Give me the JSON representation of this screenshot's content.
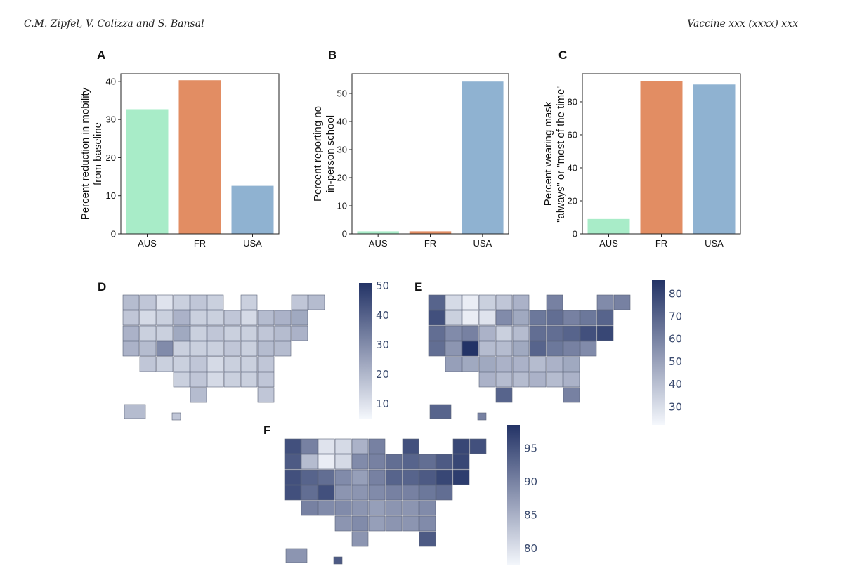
{
  "header": {
    "authors": "C.M. Zipfel, V. Colizza and S. Bansal",
    "journal": "Vaccine xxx (xxxx) xxx"
  },
  "colors": {
    "AUS": "#a8ecc8",
    "FR": "#e28d63",
    "USA": "#8fb2d1",
    "map_low": "#f4f7fc",
    "map_high": "#233366",
    "map_border": "#5a6378",
    "tick_text": "#3a4a6e"
  },
  "chart_data": [
    {
      "panel": "A",
      "type": "bar",
      "categories": [
        "AUS",
        "FR",
        "USA"
      ],
      "values": [
        32.7,
        40.3,
        12.6
      ],
      "ylabel_lines": [
        "Percent reduction in mobility",
        "from baseline"
      ],
      "ylim": [
        0,
        42
      ],
      "yticks": [
        0,
        10,
        20,
        30,
        40
      ]
    },
    {
      "panel": "B",
      "type": "bar",
      "categories": [
        "AUS",
        "FR",
        "USA"
      ],
      "values": [
        0.9,
        0.9,
        54.2
      ],
      "ylabel_lines": [
        "Percent reporting no",
        "in-person school"
      ],
      "ylim": [
        0,
        57
      ],
      "yticks": [
        0,
        10,
        20,
        30,
        40,
        50
      ]
    },
    {
      "panel": "C",
      "type": "bar",
      "categories": [
        "AUS",
        "FR",
        "USA"
      ],
      "values": [
        9,
        92.5,
        90.5
      ],
      "ylabel_lines": [
        "Percent wearing mask",
        "\"always\" or \"most of the time\""
      ],
      "ylim": [
        0,
        97
      ],
      "yticks": [
        0,
        20,
        40,
        60,
        80
      ]
    },
    {
      "panel": "D",
      "type": "heatmap",
      "description": "Choropleth of US states",
      "colorbar": {
        "min": 5,
        "max": 51,
        "ticks": [
          10,
          20,
          30,
          40,
          50
        ]
      }
    },
    {
      "panel": "E",
      "type": "heatmap",
      "description": "Choropleth of US states",
      "colorbar": {
        "min": 22,
        "max": 86,
        "ticks": [
          30,
          40,
          50,
          60,
          70,
          80
        ]
      }
    },
    {
      "panel": "F",
      "type": "heatmap",
      "description": "Choropleth of US states",
      "colorbar": {
        "min": 77.5,
        "max": 98.5,
        "ticks": [
          80,
          85,
          90,
          95
        ]
      }
    }
  ]
}
